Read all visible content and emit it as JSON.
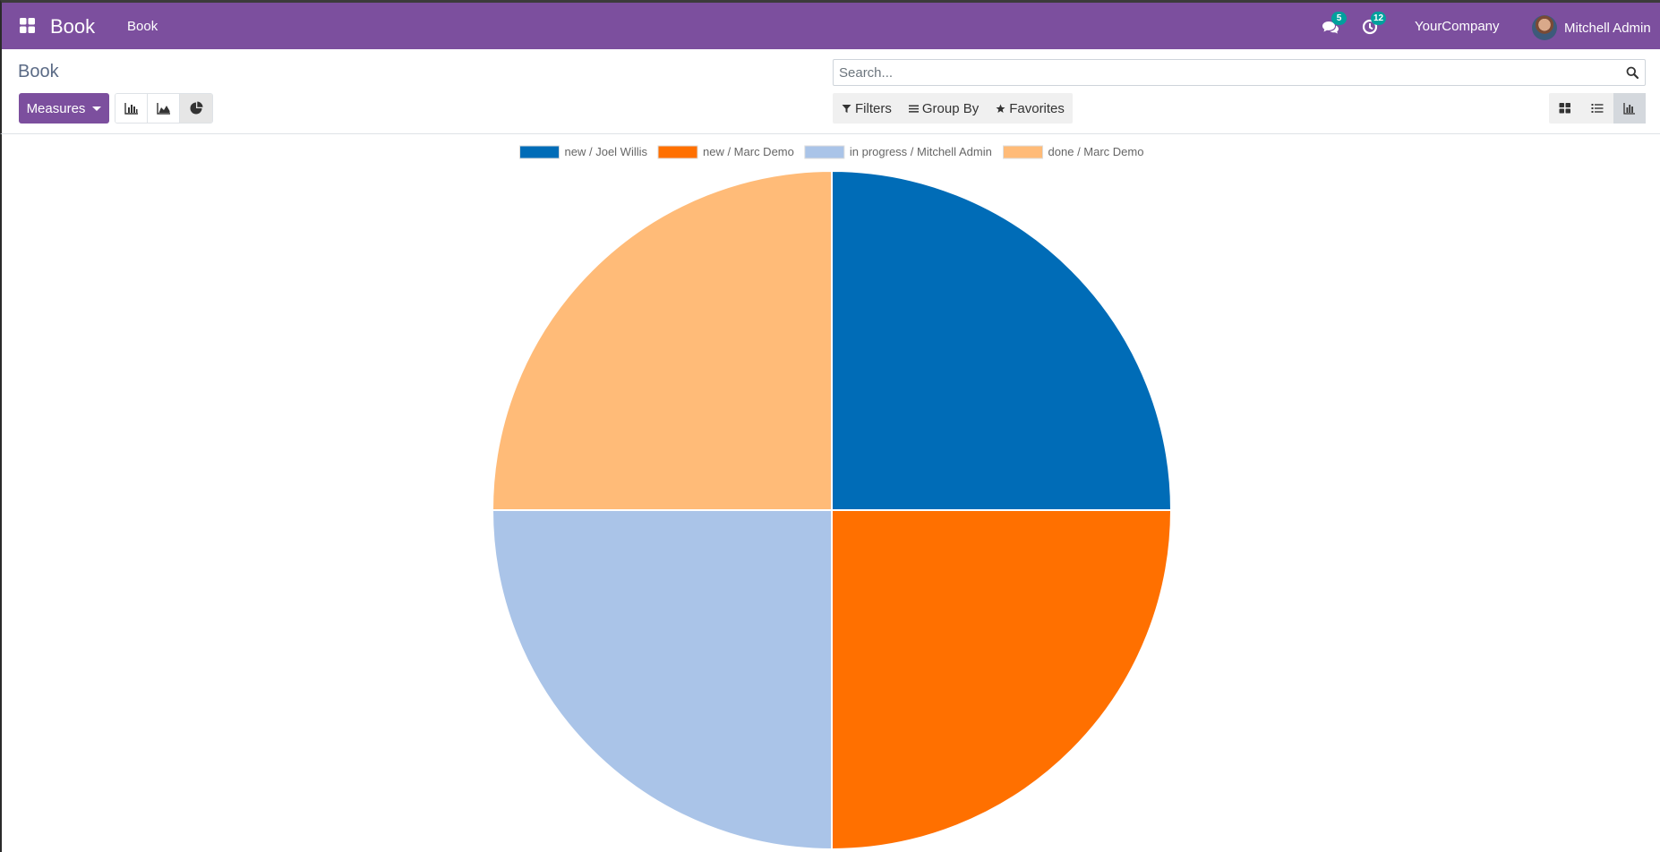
{
  "navbar": {
    "brand": "Book",
    "menu_item": "Book",
    "messages_badge": "5",
    "activities_badge": "12",
    "company": "YourCompany",
    "user_name": "Mitchell Admin"
  },
  "control_panel": {
    "breadcrumb": "Book",
    "measures_label": "Measures",
    "search_placeholder": "Search...",
    "filters_label": "Filters",
    "group_by_label": "Group By",
    "favorites_label": "Favorites",
    "active_chart_mode": "pie",
    "active_view": "graph"
  },
  "colors": {
    "navbar": "#7c4f9e",
    "accent": "#7c4f9e",
    "badge": "#00a09d"
  },
  "chart_data": {
    "type": "pie",
    "categories": [
      "new / Joel Willis",
      "new / Marc Demo",
      "in progress / Mitchell Admin",
      "done / Marc Demo"
    ],
    "values": [
      1,
      1,
      1,
      1
    ],
    "colors": [
      "#006cb7",
      "#ff7000",
      "#aac4e8",
      "#ffbb78"
    ],
    "legend_position": "top"
  }
}
